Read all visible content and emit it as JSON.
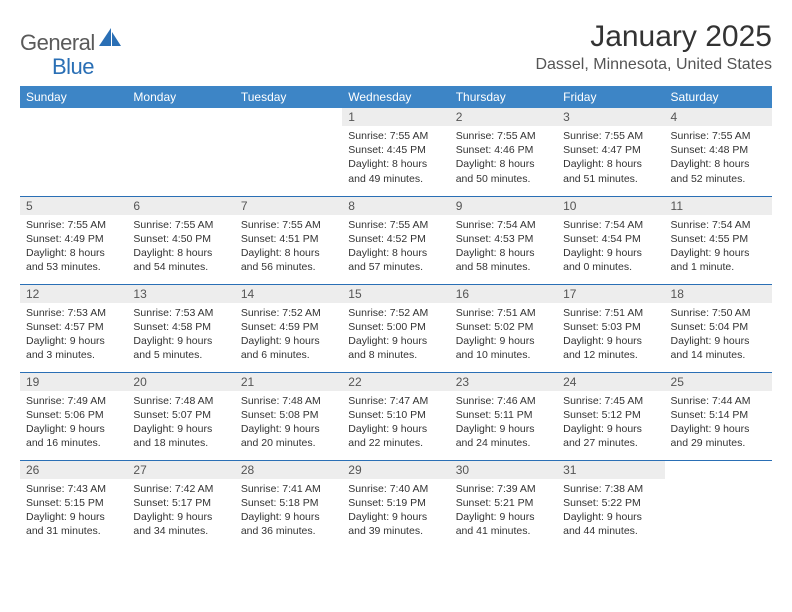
{
  "brand": {
    "part1": "General",
    "part2": "Blue"
  },
  "title": "January 2025",
  "location": "Dassel, Minnesota, United States",
  "colors": {
    "header_bg": "#3d85c6",
    "border": "#2a6fb5",
    "daynum_bg": "#ededed"
  },
  "weekdays": [
    "Sunday",
    "Monday",
    "Tuesday",
    "Wednesday",
    "Thursday",
    "Friday",
    "Saturday"
  ],
  "weeks": [
    [
      null,
      null,
      null,
      {
        "day": "1",
        "sunrise": "7:55 AM",
        "sunset": "4:45 PM",
        "daylight": "8 hours and 49 minutes."
      },
      {
        "day": "2",
        "sunrise": "7:55 AM",
        "sunset": "4:46 PM",
        "daylight": "8 hours and 50 minutes."
      },
      {
        "day": "3",
        "sunrise": "7:55 AM",
        "sunset": "4:47 PM",
        "daylight": "8 hours and 51 minutes."
      },
      {
        "day": "4",
        "sunrise": "7:55 AM",
        "sunset": "4:48 PM",
        "daylight": "8 hours and 52 minutes."
      }
    ],
    [
      {
        "day": "5",
        "sunrise": "7:55 AM",
        "sunset": "4:49 PM",
        "daylight": "8 hours and 53 minutes."
      },
      {
        "day": "6",
        "sunrise": "7:55 AM",
        "sunset": "4:50 PM",
        "daylight": "8 hours and 54 minutes."
      },
      {
        "day": "7",
        "sunrise": "7:55 AM",
        "sunset": "4:51 PM",
        "daylight": "8 hours and 56 minutes."
      },
      {
        "day": "8",
        "sunrise": "7:55 AM",
        "sunset": "4:52 PM",
        "daylight": "8 hours and 57 minutes."
      },
      {
        "day": "9",
        "sunrise": "7:54 AM",
        "sunset": "4:53 PM",
        "daylight": "8 hours and 58 minutes."
      },
      {
        "day": "10",
        "sunrise": "7:54 AM",
        "sunset": "4:54 PM",
        "daylight": "9 hours and 0 minutes."
      },
      {
        "day": "11",
        "sunrise": "7:54 AM",
        "sunset": "4:55 PM",
        "daylight": "9 hours and 1 minute."
      }
    ],
    [
      {
        "day": "12",
        "sunrise": "7:53 AM",
        "sunset": "4:57 PM",
        "daylight": "9 hours and 3 minutes."
      },
      {
        "day": "13",
        "sunrise": "7:53 AM",
        "sunset": "4:58 PM",
        "daylight": "9 hours and 5 minutes."
      },
      {
        "day": "14",
        "sunrise": "7:52 AM",
        "sunset": "4:59 PM",
        "daylight": "9 hours and 6 minutes."
      },
      {
        "day": "15",
        "sunrise": "7:52 AM",
        "sunset": "5:00 PM",
        "daylight": "9 hours and 8 minutes."
      },
      {
        "day": "16",
        "sunrise": "7:51 AM",
        "sunset": "5:02 PM",
        "daylight": "9 hours and 10 minutes."
      },
      {
        "day": "17",
        "sunrise": "7:51 AM",
        "sunset": "5:03 PM",
        "daylight": "9 hours and 12 minutes."
      },
      {
        "day": "18",
        "sunrise": "7:50 AM",
        "sunset": "5:04 PM",
        "daylight": "9 hours and 14 minutes."
      }
    ],
    [
      {
        "day": "19",
        "sunrise": "7:49 AM",
        "sunset": "5:06 PM",
        "daylight": "9 hours and 16 minutes."
      },
      {
        "day": "20",
        "sunrise": "7:48 AM",
        "sunset": "5:07 PM",
        "daylight": "9 hours and 18 minutes."
      },
      {
        "day": "21",
        "sunrise": "7:48 AM",
        "sunset": "5:08 PM",
        "daylight": "9 hours and 20 minutes."
      },
      {
        "day": "22",
        "sunrise": "7:47 AM",
        "sunset": "5:10 PM",
        "daylight": "9 hours and 22 minutes."
      },
      {
        "day": "23",
        "sunrise": "7:46 AM",
        "sunset": "5:11 PM",
        "daylight": "9 hours and 24 minutes."
      },
      {
        "day": "24",
        "sunrise": "7:45 AM",
        "sunset": "5:12 PM",
        "daylight": "9 hours and 27 minutes."
      },
      {
        "day": "25",
        "sunrise": "7:44 AM",
        "sunset": "5:14 PM",
        "daylight": "9 hours and 29 minutes."
      }
    ],
    [
      {
        "day": "26",
        "sunrise": "7:43 AM",
        "sunset": "5:15 PM",
        "daylight": "9 hours and 31 minutes."
      },
      {
        "day": "27",
        "sunrise": "7:42 AM",
        "sunset": "5:17 PM",
        "daylight": "9 hours and 34 minutes."
      },
      {
        "day": "28",
        "sunrise": "7:41 AM",
        "sunset": "5:18 PM",
        "daylight": "9 hours and 36 minutes."
      },
      {
        "day": "29",
        "sunrise": "7:40 AM",
        "sunset": "5:19 PM",
        "daylight": "9 hours and 39 minutes."
      },
      {
        "day": "30",
        "sunrise": "7:39 AM",
        "sunset": "5:21 PM",
        "daylight": "9 hours and 41 minutes."
      },
      {
        "day": "31",
        "sunrise": "7:38 AM",
        "sunset": "5:22 PM",
        "daylight": "9 hours and 44 minutes."
      },
      null
    ]
  ],
  "labels": {
    "sunrise": "Sunrise: ",
    "sunset": "Sunset: ",
    "daylight": "Daylight: "
  }
}
